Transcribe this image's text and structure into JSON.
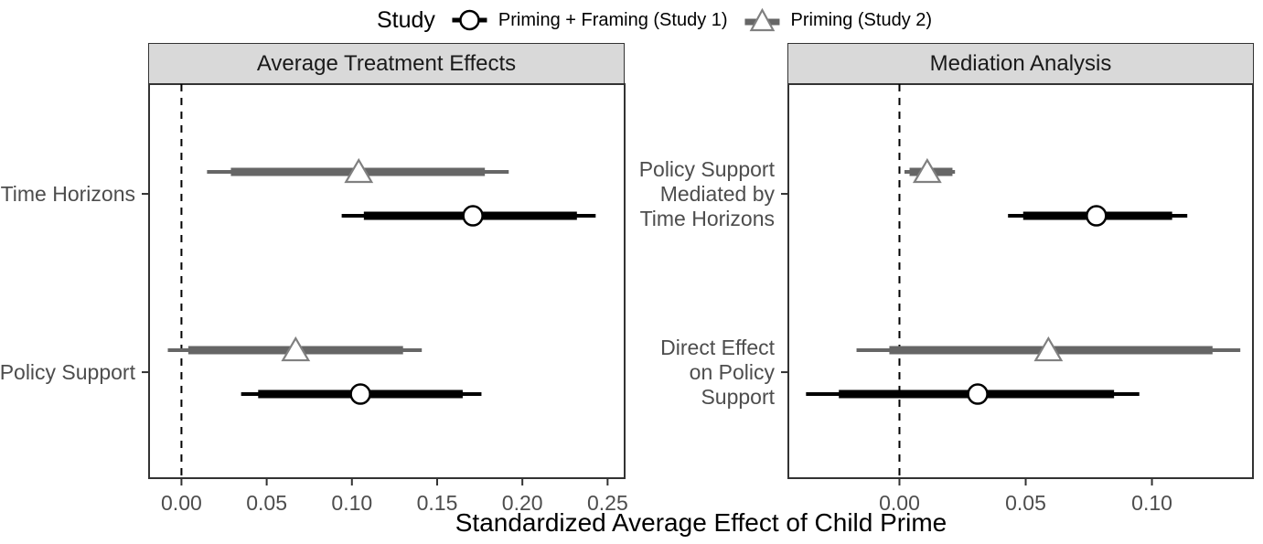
{
  "legend": {
    "title": "Study",
    "position": "top-center",
    "items": [
      {
        "label": "Priming + Framing (Study 1)",
        "marker": "circle",
        "color": "#000000",
        "marker_outline": "#000000",
        "marker_fill": "#ffffff"
      },
      {
        "label": "Priming (Study 2)",
        "marker": "triangle",
        "color": "#666666",
        "marker_outline": "#808080",
        "marker_fill": "#ffffff"
      }
    ]
  },
  "xlabel": "Standardized Average Effect of Child Prime",
  "style": {
    "strip_fill": "#d9d9d9",
    "panel_border": "#333333",
    "tick_label_color": "#4d4d4d",
    "reference_line": "dashed-black-at-0",
    "grid": "off",
    "background": "#ffffff"
  },
  "chart_data": [
    {
      "type": "pointrange-forest",
      "panel_title": "Average Treatment Effects",
      "xlim": [
        -0.019,
        0.26
      ],
      "x_ticks": [
        0,
        0.05,
        0.1,
        0.15,
        0.2,
        0.25
      ],
      "x_tick_labels": [
        "0.00",
        "0.05",
        "0.10",
        "0.15",
        "0.20",
        "0.25"
      ],
      "reference_line_x": 0,
      "categories": [
        {
          "key": "Time Horizons",
          "lines": [
            "Time Horizons"
          ]
        },
        {
          "key": "Policy Support",
          "lines": [
            "Policy Support"
          ]
        }
      ],
      "points": [
        {
          "category": "Time Horizons",
          "series": "Priming (Study 2)",
          "estimate": 0.104,
          "ci_thick": [
            0.029,
            0.178
          ],
          "ci_thin": [
            0.015,
            0.192
          ]
        },
        {
          "category": "Time Horizons",
          "series": "Priming + Framing (Study 1)",
          "estimate": 0.171,
          "ci_thick": [
            0.107,
            0.232
          ],
          "ci_thin": [
            0.094,
            0.243
          ]
        },
        {
          "category": "Policy Support",
          "series": "Priming (Study 2)",
          "estimate": 0.067,
          "ci_thick": [
            0.004,
            0.13
          ],
          "ci_thin": [
            -0.008,
            0.141
          ]
        },
        {
          "category": "Policy Support",
          "series": "Priming + Framing (Study 1)",
          "estimate": 0.105,
          "ci_thick": [
            0.045,
            0.165
          ],
          "ci_thin": [
            0.035,
            0.176
          ]
        }
      ]
    },
    {
      "type": "pointrange-forest",
      "panel_title": "Mediation Analysis",
      "xlim": [
        -0.044,
        0.14
      ],
      "x_ticks": [
        0,
        0.05,
        0.1
      ],
      "x_tick_labels": [
        "0.00",
        "0.05",
        "0.10"
      ],
      "reference_line_x": 0,
      "categories": [
        {
          "key": "Policy Support Mediated by Time Horizons",
          "lines": [
            "Policy Support",
            "Mediated by",
            "Time Horizons"
          ]
        },
        {
          "key": "Direct Effect on Policy Support",
          "lines": [
            "Direct Effect",
            "on Policy",
            "Support"
          ]
        }
      ],
      "points": [
        {
          "category": "Policy Support Mediated by Time Horizons",
          "series": "Priming (Study 2)",
          "estimate": 0.011,
          "ci_thick": [
            0.004,
            0.021
          ],
          "ci_thin": [
            0.002,
            0.022
          ]
        },
        {
          "category": "Policy Support Mediated by Time Horizons",
          "series": "Priming + Framing (Study 1)",
          "estimate": 0.078,
          "ci_thick": [
            0.049,
            0.108
          ],
          "ci_thin": [
            0.043,
            0.114
          ]
        },
        {
          "category": "Direct Effect on Policy Support",
          "series": "Priming (Study 2)",
          "estimate": 0.059,
          "ci_thick": [
            -0.004,
            0.124
          ],
          "ci_thin": [
            -0.017,
            0.135
          ]
        },
        {
          "category": "Direct Effect on Policy Support",
          "series": "Priming + Framing (Study 1)",
          "estimate": 0.031,
          "ci_thick": [
            -0.024,
            0.085
          ],
          "ci_thin": [
            -0.037,
            0.095
          ]
        }
      ]
    }
  ]
}
